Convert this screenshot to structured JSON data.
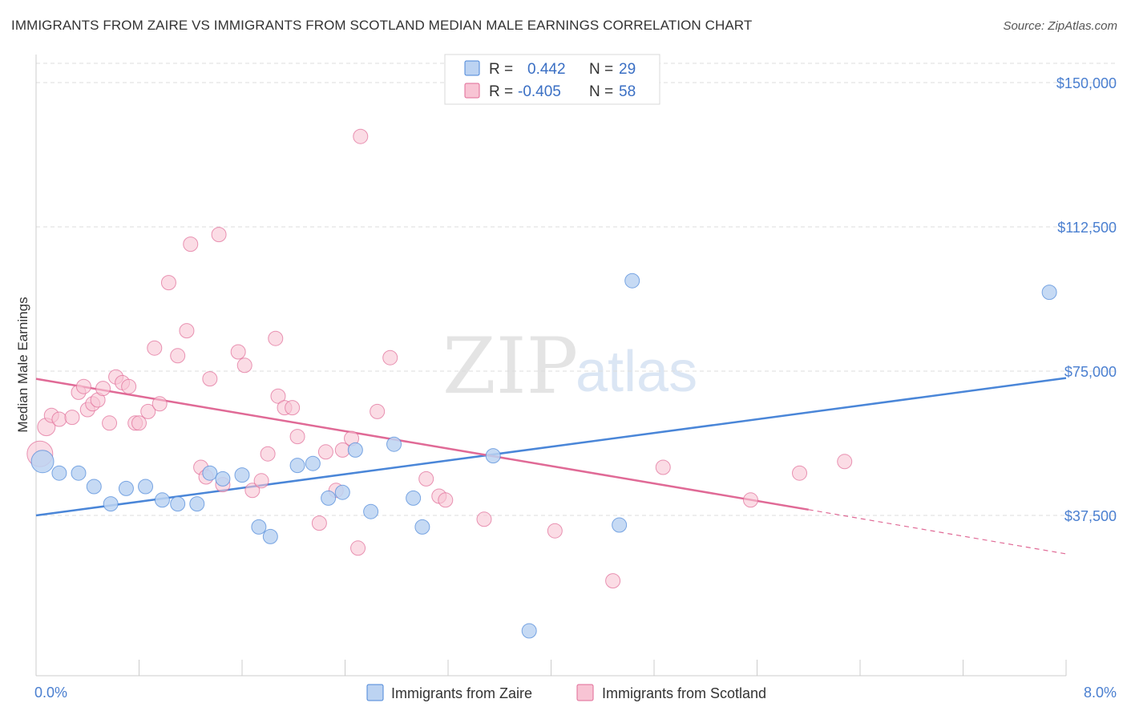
{
  "title": "IMMIGRANTS FROM ZAIRE VS IMMIGRANTS FROM SCOTLAND MEDIAN MALE EARNINGS CORRELATION CHART",
  "source": "Source: ZipAtlas.com",
  "colors": {
    "zaire": "#4a86d8",
    "zaire_fill": "#bcd3f2",
    "scotland": "#e06a96",
    "scotland_fill": "#f8c4d4",
    "tick": "#4a7fd0",
    "grid": "#dddddd"
  },
  "legend": {
    "zaire": {
      "r_label": "R =",
      "r_value": "0.442",
      "n_label": "N =",
      "n_value": "29"
    },
    "scotland": {
      "r_label": "R =",
      "r_value": "-0.405",
      "n_label": "N =",
      "n_value": "58"
    }
  },
  "watermark": {
    "zip": "ZIP",
    "atlas": "atlas"
  },
  "chart_data": {
    "type": "scatter",
    "title": "IMMIGRANTS FROM ZAIRE VS IMMIGRANTS FROM SCOTLAND MEDIAN MALE EARNINGS CORRELATION CHART",
    "xlabel": "",
    "ylabel": "Median Male Earnings",
    "xlim": [
      0,
      8
    ],
    "ylim": [
      0,
      155000
    ],
    "x_tick_labels": [
      "0.0%",
      "8.0%"
    ],
    "y_ticks": [
      37500,
      75000,
      112500,
      150000
    ],
    "y_tick_labels": [
      "$37,500",
      "$75,000",
      "$112,500",
      "$150,000"
    ],
    "grid": true,
    "legend_position": "top-center",
    "series": [
      {
        "name": "Immigrants from Zaire",
        "color": "#4a86d8",
        "trend": {
          "x": [
            0,
            8
          ],
          "y": [
            37500,
            73200
          ]
        },
        "points": [
          [
            0.05,
            51500,
            14
          ],
          [
            0.18,
            48500,
            9
          ],
          [
            0.33,
            48500,
            9
          ],
          [
            0.45,
            45000,
            9
          ],
          [
            0.58,
            40500,
            9
          ],
          [
            0.7,
            44500,
            9
          ],
          [
            0.85,
            45000,
            9
          ],
          [
            0.98,
            41500,
            9
          ],
          [
            1.1,
            40500,
            9
          ],
          [
            1.25,
            40500,
            9
          ],
          [
            1.35,
            48500,
            9
          ],
          [
            1.45,
            47000,
            9
          ],
          [
            1.6,
            48000,
            9
          ],
          [
            1.73,
            34500,
            9
          ],
          [
            1.82,
            32000,
            9
          ],
          [
            2.03,
            50500,
            9
          ],
          [
            2.15,
            51000,
            9
          ],
          [
            2.27,
            42000,
            9
          ],
          [
            2.38,
            43500,
            9
          ],
          [
            2.48,
            54500,
            9
          ],
          [
            2.6,
            38500,
            9
          ],
          [
            2.78,
            56000,
            9
          ],
          [
            2.93,
            42000,
            9
          ],
          [
            3.0,
            34500,
            9
          ],
          [
            3.55,
            53000,
            9
          ],
          [
            3.83,
            7500,
            9
          ],
          [
            4.53,
            35000,
            9
          ],
          [
            4.63,
            98500,
            9
          ],
          [
            7.87,
            95500,
            9
          ]
        ]
      },
      {
        "name": "Immigrants from Scotland",
        "color": "#e06a96",
        "trend": {
          "x": [
            0,
            6.0
          ],
          "y": [
            73000,
            39000
          ]
        },
        "trend_dashed": {
          "x": [
            6.0,
            8
          ],
          "y": [
            39000,
            27500
          ]
        },
        "points": [
          [
            0.03,
            53500,
            16
          ],
          [
            0.08,
            60500,
            11
          ],
          [
            0.12,
            63500,
            9
          ],
          [
            0.18,
            62500,
            9
          ],
          [
            0.28,
            63000,
            9
          ],
          [
            0.33,
            69500,
            9
          ],
          [
            0.37,
            71000,
            9
          ],
          [
            0.4,
            65000,
            9
          ],
          [
            0.44,
            66500,
            9
          ],
          [
            0.48,
            67500,
            9
          ],
          [
            0.52,
            70500,
            9
          ],
          [
            0.57,
            61500,
            9
          ],
          [
            0.62,
            73500,
            9
          ],
          [
            0.67,
            72000,
            9
          ],
          [
            0.72,
            71000,
            9
          ],
          [
            0.77,
            61500,
            9
          ],
          [
            0.8,
            61500,
            9
          ],
          [
            0.87,
            64500,
            9
          ],
          [
            0.92,
            81000,
            9
          ],
          [
            0.96,
            66500,
            9
          ],
          [
            1.03,
            98000,
            9
          ],
          [
            1.1,
            79000,
            9
          ],
          [
            1.17,
            85500,
            9
          ],
          [
            1.2,
            108000,
            9
          ],
          [
            1.28,
            50000,
            9
          ],
          [
            1.32,
            47500,
            9
          ],
          [
            1.35,
            73000,
            9
          ],
          [
            1.42,
            110500,
            9
          ],
          [
            1.45,
            45500,
            9
          ],
          [
            1.57,
            80000,
            9
          ],
          [
            1.62,
            76500,
            9
          ],
          [
            1.68,
            44000,
            9
          ],
          [
            1.75,
            46500,
            9
          ],
          [
            1.8,
            53500,
            9
          ],
          [
            1.86,
            83500,
            9
          ],
          [
            1.88,
            68500,
            9
          ],
          [
            1.93,
            65500,
            9
          ],
          [
            1.99,
            65500,
            9
          ],
          [
            2.03,
            58000,
            9
          ],
          [
            2.2,
            35500,
            9
          ],
          [
            2.25,
            54000,
            9
          ],
          [
            2.33,
            44000,
            9
          ],
          [
            2.38,
            54500,
            9
          ],
          [
            2.45,
            57500,
            9
          ],
          [
            2.5,
            29000,
            9
          ],
          [
            2.52,
            136000,
            9
          ],
          [
            2.65,
            64500,
            9
          ],
          [
            2.75,
            78500,
            9
          ],
          [
            3.03,
            47000,
            9
          ],
          [
            3.13,
            42500,
            9
          ],
          [
            3.18,
            41500,
            9
          ],
          [
            3.48,
            36500,
            9
          ],
          [
            4.03,
            33500,
            9
          ],
          [
            4.48,
            20500,
            9
          ],
          [
            4.87,
            50000,
            9
          ],
          [
            5.55,
            41500,
            9
          ],
          [
            5.93,
            48500,
            9
          ],
          [
            6.28,
            51500,
            9
          ]
        ]
      }
    ]
  }
}
